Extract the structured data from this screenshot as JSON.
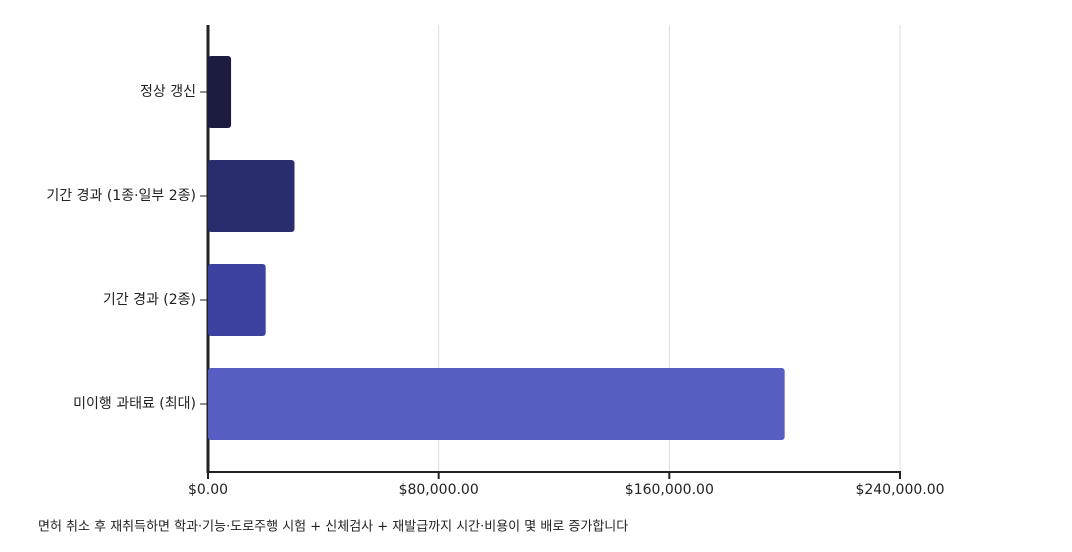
{
  "chart_data": {
    "type": "barh",
    "categories": [
      "정상 갱신",
      "기간 경과 (1종·일부 2종)",
      "기간 경과 (2종)",
      "미이행 과태료 (최대)"
    ],
    "values": [
      8000,
      30000,
      20000,
      200000
    ],
    "colors": [
      "#1b1c40",
      "#292c6d",
      "#3c41a0",
      "#575ec2"
    ],
    "xlim": [
      0,
      240000
    ],
    "xticks": [
      {
        "value": 0,
        "label": "$0.00"
      },
      {
        "value": 80000,
        "label": "$80,000.00"
      },
      {
        "value": 160000,
        "label": "$160,000.00"
      },
      {
        "value": 240000,
        "label": "$240,000.00"
      }
    ],
    "grid": true,
    "footnote": "면허 취소 후 재취득하면 학과·기능·도로주행 시험 + 신체검사 + 재발급까지 시간·비용이 몇 배로 증가합니다"
  }
}
